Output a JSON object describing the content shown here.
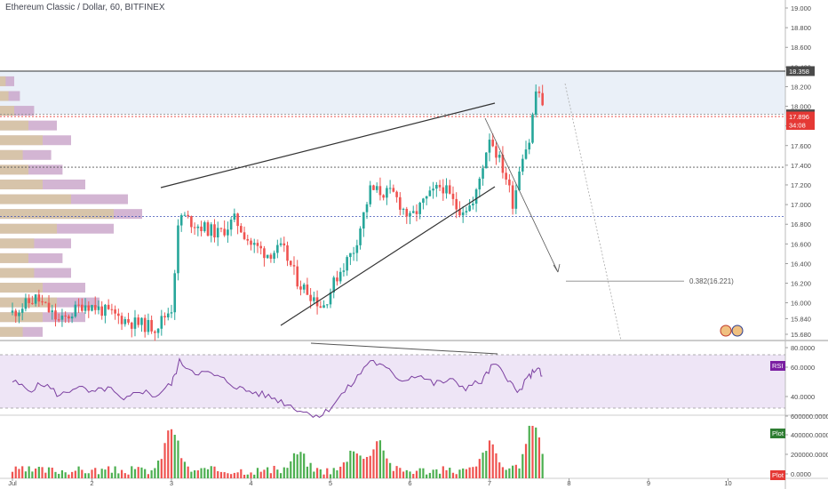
{
  "chart_data": [
    {
      "type": "candlestick",
      "title": "Ethereum Classic / Dollar, 60, BITFINEX",
      "y_ticks": [
        "19.000",
        "18.800",
        "18.600",
        "18.400",
        "18.200",
        "18.000",
        "17.800",
        "17.600",
        "17.400",
        "17.200",
        "17.000",
        "16.800",
        "16.600",
        "16.400",
        "16.200",
        "16.000",
        "15.840",
        "15.680"
      ],
      "x_ticks": [
        "Jul",
        "2",
        "3",
        "4",
        "5",
        "6",
        "7",
        "8",
        "9",
        "10"
      ],
      "ylim": [
        15.6,
        19.1
      ],
      "price_badges": [
        {
          "label": "18.358",
          "value": 18.358,
          "color": "#4a4a4a"
        },
        {
          "label": "17.918",
          "value": 17.918,
          "color": "#4a4a4a"
        },
        {
          "label": "17.896",
          "value": 17.896,
          "color": "#e53935"
        },
        {
          "label": "34:08",
          "value": 17.81,
          "color": "#e53935"
        }
      ],
      "horizontal_lines": [
        {
          "value": 18.358,
          "color": "#333333",
          "style": "solid"
        },
        {
          "value": 17.918,
          "color": "#888888",
          "style": "dotted"
        },
        {
          "value": 17.896,
          "color": "#e53935",
          "style": "dotted"
        },
        {
          "value": 17.38,
          "color": "#555555",
          "style": "dotted"
        },
        {
          "value": 16.88,
          "color": "#3f51b5",
          "style": "dotted"
        }
      ],
      "fib_label": "0.382(16.221)",
      "fib_value": 16.221,
      "close_points": [
        [
          0.0,
          15.9
        ],
        [
          0.3,
          16.05
        ],
        [
          0.6,
          15.8
        ],
        [
          0.9,
          16.0
        ],
        [
          1.2,
          15.9
        ],
        [
          1.5,
          15.8
        ],
        [
          1.8,
          15.75
        ],
        [
          2.0,
          15.95
        ],
        [
          2.1,
          16.9
        ],
        [
          2.3,
          16.8
        ],
        [
          2.6,
          16.7
        ],
        [
          2.8,
          16.85
        ],
        [
          3.0,
          16.6
        ],
        [
          3.2,
          16.5
        ],
        [
          3.4,
          16.55
        ],
        [
          3.6,
          16.2
        ],
        [
          3.8,
          16.05
        ],
        [
          3.9,
          15.95
        ],
        [
          4.1,
          16.3
        ],
        [
          4.3,
          16.55
        ],
        [
          4.5,
          17.15
        ],
        [
          4.8,
          17.1
        ],
        [
          5.0,
          16.85
        ],
        [
          5.2,
          17.05
        ],
        [
          5.4,
          17.2
        ],
        [
          5.6,
          16.95
        ],
        [
          5.8,
          17.0
        ],
        [
          6.0,
          17.7
        ],
        [
          6.2,
          17.3
        ],
        [
          6.3,
          17.0
        ],
        [
          6.4,
          17.5
        ],
        [
          6.5,
          17.65
        ],
        [
          6.6,
          18.25
        ],
        [
          6.68,
          17.9
        ]
      ],
      "volume_profile_levels": [
        [
          18.25,
          0.05,
          0.02
        ],
        [
          18.1,
          0.07,
          0.03
        ],
        [
          17.95,
          0.12,
          0.05
        ],
        [
          17.8,
          0.2,
          0.1
        ],
        [
          17.65,
          0.25,
          0.15
        ],
        [
          17.5,
          0.18,
          0.08
        ],
        [
          17.35,
          0.22,
          0.1
        ],
        [
          17.2,
          0.3,
          0.15
        ],
        [
          17.05,
          0.45,
          0.25
        ],
        [
          16.9,
          0.5,
          0.4
        ],
        [
          16.75,
          0.4,
          0.2
        ],
        [
          16.6,
          0.25,
          0.12
        ],
        [
          16.45,
          0.22,
          0.1
        ],
        [
          16.3,
          0.25,
          0.12
        ],
        [
          16.15,
          0.3,
          0.15
        ],
        [
          16.0,
          0.35,
          0.2
        ],
        [
          15.85,
          0.3,
          0.15
        ],
        [
          15.7,
          0.15,
          0.08
        ]
      ]
    },
    {
      "type": "line",
      "label": "RSI",
      "y_ticks": [
        "80.0000",
        "60.0000",
        "40.0000"
      ],
      "ylim": [
        30,
        90
      ],
      "values": [
        [
          0.0,
          62
        ],
        [
          0.2,
          55
        ],
        [
          0.4,
          60
        ],
        [
          0.6,
          50
        ],
        [
          0.8,
          58
        ],
        [
          1.0,
          52
        ],
        [
          1.2,
          57
        ],
        [
          1.4,
          45
        ],
        [
          1.6,
          55
        ],
        [
          1.8,
          50
        ],
        [
          2.0,
          60
        ],
        [
          2.1,
          78
        ],
        [
          2.3,
          70
        ],
        [
          2.5,
          68
        ],
        [
          2.7,
          62
        ],
        [
          2.9,
          55
        ],
        [
          3.1,
          52
        ],
        [
          3.3,
          48
        ],
        [
          3.5,
          42
        ],
        [
          3.7,
          36
        ],
        [
          3.9,
          34
        ],
        [
          4.1,
          48
        ],
        [
          4.3,
          62
        ],
        [
          4.5,
          80
        ],
        [
          4.7,
          72
        ],
        [
          4.9,
          63
        ],
        [
          5.1,
          68
        ],
        [
          5.3,
          60
        ],
        [
          5.5,
          63
        ],
        [
          5.7,
          57
        ],
        [
          5.9,
          62
        ],
        [
          6.05,
          76
        ],
        [
          6.2,
          68
        ],
        [
          6.35,
          52
        ],
        [
          6.5,
          66
        ],
        [
          6.6,
          74
        ],
        [
          6.68,
          63
        ]
      ]
    },
    {
      "type": "bar",
      "label": "Plot",
      "y_ticks": [
        "600000.0000",
        "400000.0000",
        "200000.0000",
        "0.0000"
      ],
      "ylim": [
        0,
        600000
      ]
    }
  ]
}
